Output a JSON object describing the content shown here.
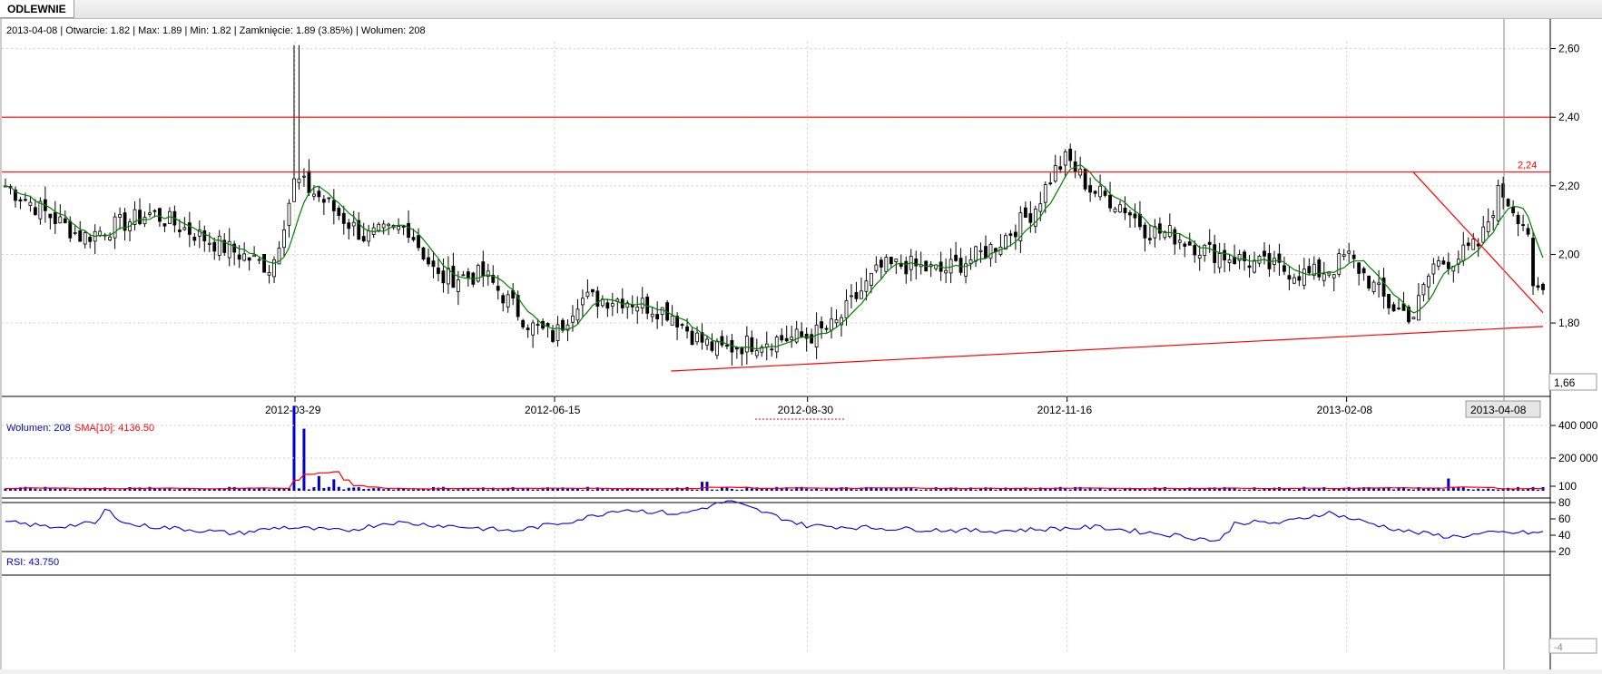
{
  "tab": {
    "label": "ODLEWNIE"
  },
  "info_bar": {
    "text": "2013-04-08 | Otwarcie: 1.82 | Max: 1.89 | Min: 1.82 | Zamknięcie: 1.89 (3.85%)  | Wolumen: 208"
  },
  "volume_legend": {
    "volume_text": "Wolumen: 208",
    "sma_text": "SMA[10]: 4136.50"
  },
  "rsi_legend": {
    "text": "RSI: 43.750"
  },
  "price_markers": {
    "resistance_label": "2,24",
    "current_price_box": "1,66",
    "current_date_box": "2013-04-08",
    "rsi_current_box": "-4"
  },
  "colors": {
    "up_candle": "#ffffff",
    "down_candle": "#000000",
    "sma_price": "#008000",
    "volume_bar": "#0000cc",
    "volume_sma": "#ff0000",
    "rsi_line": "#0000dd",
    "trend_lines": "#ff0000",
    "grid": "#cfcfcf"
  },
  "chart_data": [
    {
      "type": "candlestick",
      "name": "price",
      "x_labels": [
        "2012-03-29",
        "2012-06-15",
        "2012-08-30",
        "2012-11-16",
        "2013-02-08"
      ],
      "y_ticks": [
        "2,60",
        "2,40",
        "2,20",
        "2,00",
        "1,80"
      ],
      "ylim": [
        1.66,
        2.62
      ],
      "grid": true,
      "annotations": {
        "horizontal_lines": [
          2.4,
          2.24
        ],
        "support_trendline": [
          {
            "date": "2012-07-20",
            "value": 1.66
          },
          {
            "date": "2013-04-08",
            "value": 1.79
          }
        ],
        "resistance_trendline": [
          {
            "date": "2013-02-28",
            "value": 2.24
          },
          {
            "date": "2013-04-08",
            "value": 1.83
          }
        ]
      },
      "close_series_keypoints": [
        [
          "2012-01-02",
          2.2
        ],
        [
          "2012-01-25",
          2.05
        ],
        [
          "2012-02-15",
          2.12
        ],
        [
          "2012-03-08",
          2.02
        ],
        [
          "2012-03-22",
          1.96
        ],
        [
          "2012-03-29",
          2.22
        ],
        [
          "2012-04-05",
          2.17
        ],
        [
          "2012-04-19",
          2.05
        ],
        [
          "2012-05-02",
          2.08
        ],
        [
          "2012-05-11",
          1.93
        ],
        [
          "2012-05-25",
          1.94
        ],
        [
          "2012-06-08",
          1.79
        ],
        [
          "2012-06-15",
          1.76
        ],
        [
          "2012-06-22",
          1.87
        ],
        [
          "2012-07-06",
          1.87
        ],
        [
          "2012-07-20",
          1.83
        ],
        [
          "2012-07-27",
          1.76
        ],
        [
          "2012-08-03",
          1.72
        ],
        [
          "2012-08-17",
          1.75
        ],
        [
          "2012-08-30",
          1.76
        ],
        [
          "2012-09-07",
          1.79
        ],
        [
          "2012-09-14",
          1.88
        ],
        [
          "2012-09-21",
          1.96
        ],
        [
          "2012-09-28",
          1.97
        ],
        [
          "2012-10-09",
          1.95
        ],
        [
          "2012-10-19",
          1.99
        ],
        [
          "2012-10-26",
          2.03
        ],
        [
          "2012-11-06",
          2.13
        ],
        [
          "2012-11-12",
          2.24
        ],
        [
          "2012-11-16",
          2.28
        ],
        [
          "2012-11-23",
          2.19
        ],
        [
          "2012-12-03",
          2.14
        ],
        [
          "2012-12-10",
          2.07
        ],
        [
          "2012-12-17",
          2.06
        ],
        [
          "2012-12-28",
          2.01
        ],
        [
          "2013-01-09",
          1.98
        ],
        [
          "2013-01-18",
          1.96
        ],
        [
          "2013-01-28",
          1.94
        ],
        [
          "2013-02-04",
          1.96
        ],
        [
          "2013-02-08",
          2.0
        ],
        [
          "2013-02-15",
          1.92
        ],
        [
          "2013-02-21",
          1.85
        ],
        [
          "2013-02-28",
          1.82
        ],
        [
          "2013-03-06",
          1.97
        ],
        [
          "2013-03-13",
          1.99
        ],
        [
          "2013-03-20",
          2.03
        ],
        [
          "2013-03-26",
          2.19
        ],
        [
          "2013-04-01",
          2.11
        ],
        [
          "2013-04-04",
          2.06
        ],
        [
          "2013-04-05",
          1.88
        ],
        [
          "2013-04-08",
          1.89
        ]
      ]
    },
    {
      "type": "bar",
      "name": "volume",
      "y_ticks": [
        "400 000",
        "200 000"
      ],
      "ylim": [
        0,
        500000
      ],
      "spikes": [
        {
          "date": "2012-03-29",
          "value": 520000
        },
        {
          "date": "2012-04-01",
          "value": 380000
        },
        {
          "date": "2012-04-05",
          "value": 90000
        },
        {
          "date": "2012-04-10",
          "value": 70000
        },
        {
          "date": "2012-07-30",
          "value": 55000
        },
        {
          "date": "2013-03-11",
          "value": 75000
        }
      ],
      "baseline_value": 15000,
      "sma_peak": 130000
    },
    {
      "type": "line",
      "name": "RSI",
      "y_ticks": [
        "100",
        "80",
        "60",
        "40",
        "20"
      ],
      "ylim": [
        0,
        100
      ],
      "levels": [
        80,
        20
      ],
      "keypoints": [
        [
          0,
          56
        ],
        [
          0.03,
          50
        ],
        [
          0.06,
          55
        ],
        [
          0.065,
          72
        ],
        [
          0.08,
          53
        ],
        [
          0.12,
          47
        ],
        [
          0.15,
          42
        ],
        [
          0.18,
          50
        ],
        [
          0.22,
          45
        ],
        [
          0.25,
          56
        ],
        [
          0.3,
          50
        ],
        [
          0.33,
          45
        ],
        [
          0.37,
          58
        ],
        [
          0.4,
          72
        ],
        [
          0.44,
          66
        ],
        [
          0.47,
          82
        ],
        [
          0.52,
          52
        ],
        [
          0.58,
          48
        ],
        [
          0.64,
          45
        ],
        [
          0.71,
          50
        ],
        [
          0.76,
          40
        ],
        [
          0.79,
          33
        ],
        [
          0.8,
          56
        ],
        [
          0.83,
          55
        ],
        [
          0.86,
          68
        ],
        [
          0.88,
          58
        ],
        [
          0.91,
          45
        ],
        [
          0.94,
          38
        ],
        [
          0.97,
          43
        ],
        [
          1.0,
          43
        ]
      ]
    }
  ]
}
